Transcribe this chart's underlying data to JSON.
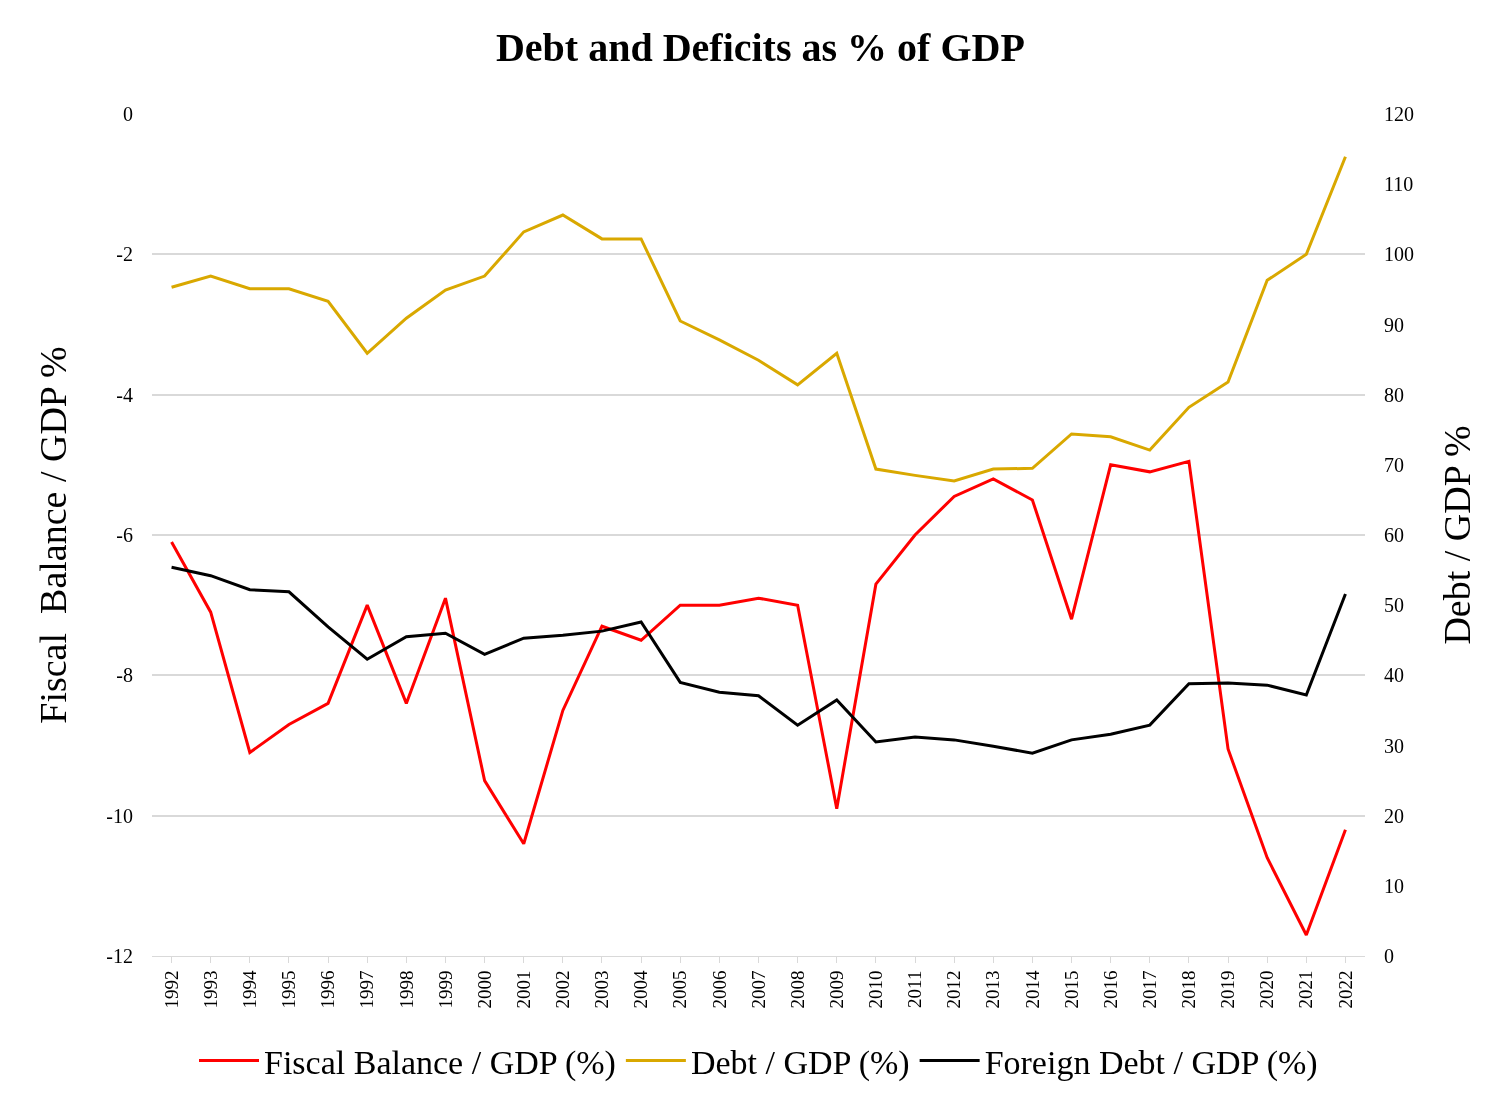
{
  "chart_data": {
    "type": "line",
    "title": "Debt and Deficits as % of GDP",
    "ylabel": "Fiscal  Balance / GDP %",
    "y2label": "Debt / GDP %",
    "categories": [
      "1992",
      "1993",
      "1994",
      "1995",
      "1996",
      "1997",
      "1998",
      "1999",
      "2000",
      "2001",
      "2002",
      "2003",
      "2004",
      "2005",
      "2006",
      "2007",
      "2008",
      "2009",
      "2010",
      "2011",
      "2012",
      "2013",
      "2014",
      "2015",
      "2016",
      "2017",
      "2018",
      "2019",
      "2020",
      "2021",
      "2022"
    ],
    "series": [
      {
        "name": "Fiscal Balance / GDP (%)",
        "color": "#ff0000",
        "values": [
          -6.1,
          -7.1,
          -9.1,
          -8.7,
          -8.4,
          -7.0,
          -8.4,
          -6.9,
          -9.5,
          -10.4,
          -8.5,
          -7.3,
          -7.5,
          -7.0,
          -7.0,
          -6.9,
          -7.0,
          -9.9,
          -6.7,
          -6.0,
          -5.45,
          -5.2,
          -5.5,
          -7.2,
          -5.0,
          -5.1,
          -4.95,
          -9.05,
          -10.6,
          -11.7,
          -10.2
        ]
      },
      {
        "name": "Debt / GDP (%)",
        "color": "#d9a800",
        "axis": "y2",
        "values": [
          95.3,
          96.9,
          95.1,
          95.1,
          93.3,
          85.9,
          90.9,
          94.9,
          96.9,
          103.2,
          105.6,
          102.2,
          102.2,
          90.5,
          87.8,
          84.9,
          81.4,
          85.9,
          69.4,
          68.5,
          67.7,
          69.4,
          69.5,
          74.4,
          74.0,
          72.1,
          78.2,
          81.8,
          96.3,
          100.0,
          113.9
        ]
      },
      {
        "name": "Foreign Debt / GDP (%)",
        "color": "#000000",
        "axis": "y2",
        "values": [
          55.4,
          54.2,
          52.2,
          51.9,
          46.9,
          42.3,
          45.5,
          46.0,
          43.0,
          45.3,
          45.7,
          46.3,
          47.6,
          39.0,
          37.6,
          37.1,
          32.9,
          36.5,
          30.5,
          31.2,
          30.8,
          29.9,
          28.9,
          30.8,
          31.6,
          32.9,
          38.8,
          38.9,
          38.6,
          37.2,
          51.6
        ]
      }
    ],
    "ylim": [
      -12,
      0
    ],
    "yticks": [
      -12,
      -10,
      -8,
      -6,
      -4,
      -2,
      0
    ],
    "y2lim": [
      0,
      120
    ],
    "y2ticks": [
      0,
      10,
      20,
      30,
      40,
      50,
      60,
      70,
      80,
      90,
      100,
      110,
      120
    ],
    "grid": "y",
    "legend": "bottom",
    "marker": "none",
    "line_style": "solid"
  }
}
